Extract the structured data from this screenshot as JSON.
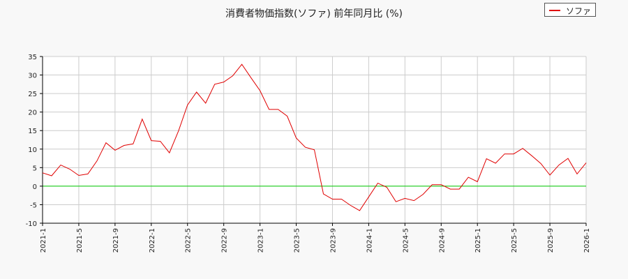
{
  "title": "消費者物価指数(ソファ) 前年同月比 (%)",
  "legend": {
    "label": "ソファ",
    "color": "#e00000"
  },
  "chart_data": {
    "type": "line",
    "title": "消費者物価指数(ソファ) 前年同月比 (%)",
    "xlabel": "",
    "ylabel": "",
    "ylim": [
      -10,
      35
    ],
    "yticks": [
      -10,
      -5,
      0,
      5,
      10,
      15,
      20,
      25,
      30,
      35
    ],
    "xticks": [
      "2021-1",
      "2021-5",
      "2021-9",
      "2022-1",
      "2022-5",
      "2022-9",
      "2023-1",
      "2023-5",
      "2023-9",
      "2024-1",
      "2024-5",
      "2024-9",
      "2025-1",
      "2025-5",
      "2025-9",
      "2026-1"
    ],
    "grid": true,
    "legend_position": "top-right",
    "zero_line_color": "#00cc00",
    "x": [
      "2021-1",
      "2021-2",
      "2021-3",
      "2021-4",
      "2021-5",
      "2021-6",
      "2021-7",
      "2021-8",
      "2021-9",
      "2021-10",
      "2021-11",
      "2021-12",
      "2022-1",
      "2022-2",
      "2022-3",
      "2022-4",
      "2022-5",
      "2022-6",
      "2022-7",
      "2022-8",
      "2022-9",
      "2022-10",
      "2022-11",
      "2022-12",
      "2023-1",
      "2023-2",
      "2023-3",
      "2023-4",
      "2023-5",
      "2023-6",
      "2023-7",
      "2023-8",
      "2023-9",
      "2023-10",
      "2023-11",
      "2023-12",
      "2024-1",
      "2024-2",
      "2024-3",
      "2024-4",
      "2024-5",
      "2024-6",
      "2024-7",
      "2024-8",
      "2024-9",
      "2024-10",
      "2024-11",
      "2024-12",
      "2025-1",
      "2025-2",
      "2025-3",
      "2025-4",
      "2025-5",
      "2025-6",
      "2025-7",
      "2025-8",
      "2025-9",
      "2025-10",
      "2025-11",
      "2025-12",
      "2026-1"
    ],
    "series": [
      {
        "name": "ソファ",
        "color": "#e00000",
        "values": [
          3.6,
          2.8,
          5.7,
          4.6,
          2.9,
          3.3,
          6.8,
          11.7,
          9.7,
          11.0,
          11.4,
          18.1,
          12.3,
          12.1,
          9.0,
          14.9,
          21.9,
          25.4,
          22.4,
          27.5,
          28.1,
          29.8,
          32.9,
          29.3,
          25.8,
          20.7,
          20.7,
          18.9,
          13.0,
          10.5,
          9.8,
          -2.1,
          -3.5,
          -3.5,
          -5.2,
          -6.6,
          -2.9,
          0.8,
          -0.3,
          -4.2,
          -3.3,
          -3.9,
          -2.2,
          0.4,
          0.4,
          -0.8,
          -0.8,
          2.4,
          1.2,
          7.4,
          6.2,
          8.7,
          8.7,
          10.2,
          8.2,
          6.1,
          3.0,
          5.7,
          7.5,
          3.3,
          6.3
        ]
      }
    ]
  }
}
